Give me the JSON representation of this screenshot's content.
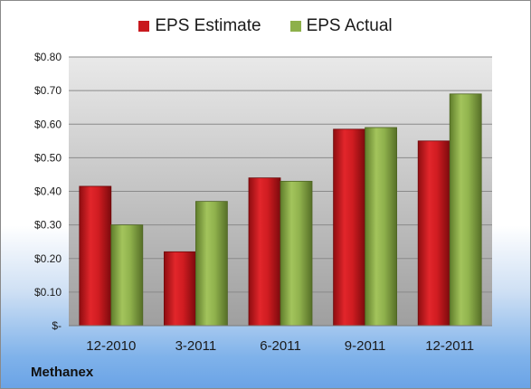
{
  "chart_data": {
    "type": "bar",
    "categories": [
      "12-2010",
      "3-2011",
      "6-2011",
      "9-2011",
      "12-2011"
    ],
    "series": [
      {
        "name": "EPS Estimate",
        "values": [
          0.415,
          0.22,
          0.44,
          0.585,
          0.55
        ],
        "color": "#c8191e"
      },
      {
        "name": "EPS Actual",
        "values": [
          0.3,
          0.37,
          0.43,
          0.59,
          0.69
        ],
        "color": "#8db04a"
      }
    ],
    "ylim": [
      0,
      0.8
    ],
    "yticks": [
      0,
      0.1,
      0.2,
      0.3,
      0.4,
      0.5,
      0.6,
      0.7,
      0.8
    ],
    "ytick_labels": [
      "$-",
      "$0.10",
      "$0.20",
      "$0.30",
      "$0.40",
      "$0.50",
      "$0.60",
      "$0.70",
      "$0.80"
    ],
    "grid": true,
    "legend_position": "top",
    "company": "Methanex"
  }
}
